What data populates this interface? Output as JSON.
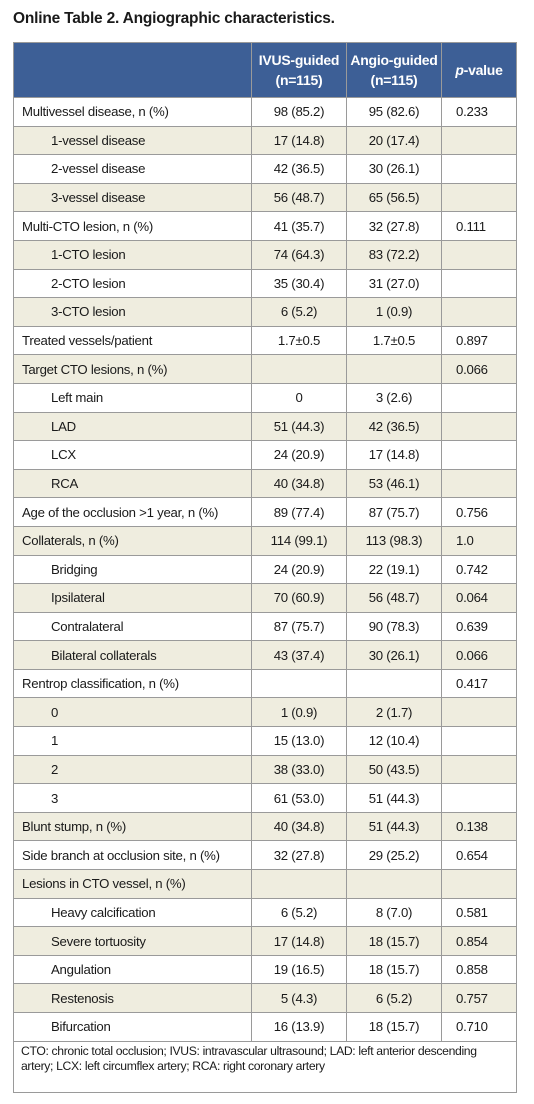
{
  "title": "Online Table 2. Angiographic characteristics.",
  "table": {
    "headers": {
      "label": "",
      "ivus": "IVUS-guided\n(n=115)",
      "ivus_l1": "IVUS-guided",
      "ivus_l2": "(n=115)",
      "angio_l1": "Angio-guided",
      "angio_l2": "(n=115)",
      "p_italic": "p",
      "p_rest": "-value"
    },
    "rows": [
      {
        "label": "Multivessel disease, n (%)",
        "ivus": "98 (85.2)",
        "angio": "95 (82.6)",
        "p": "0.233"
      },
      {
        "label": "1-vessel disease",
        "ivus": "17 (14.8)",
        "angio": "20 (17.4)",
        "p": ""
      },
      {
        "label": "2-vessel disease",
        "ivus": "42 (36.5)",
        "angio": "30 (26.1)",
        "p": ""
      },
      {
        "label": "3-vessel disease",
        "ivus": "56 (48.7)",
        "angio": "65 (56.5)",
        "p": ""
      },
      {
        "label": "Multi-CTO lesion, n (%)",
        "ivus": "41 (35.7)",
        "angio": "32 (27.8)",
        "p": "0.111"
      },
      {
        "label": "1-CTO lesion",
        "ivus": "74 (64.3)",
        "angio": "83 (72.2)",
        "p": ""
      },
      {
        "label": "2-CTO lesion",
        "ivus": "35 (30.4)",
        "angio": "31 (27.0)",
        "p": ""
      },
      {
        "label": "3-CTO lesion",
        "ivus": "6 (5.2)",
        "angio": "1 (0.9)",
        "p": ""
      },
      {
        "label": "Treated vessels/patient",
        "ivus": "1.7±0.5",
        "angio": "1.7±0.5",
        "p": "0.897"
      },
      {
        "label": "Target CTO lesions, n (%)",
        "ivus": "",
        "angio": "",
        "p": "0.066"
      },
      {
        "label": "Left main",
        "ivus": "0",
        "angio": "3 (2.6)",
        "p": ""
      },
      {
        "label": "LAD",
        "ivus": "51 (44.3)",
        "angio": "42 (36.5)",
        "p": ""
      },
      {
        "label": "LCX",
        "ivus": "24 (20.9)",
        "angio": "17 (14.8)",
        "p": ""
      },
      {
        "label": "RCA",
        "ivus": "40 (34.8)",
        "angio": "53 (46.1)",
        "p": ""
      },
      {
        "label": "Age of the occlusion >1 year, n (%)",
        "ivus": "89 (77.4)",
        "angio": "87 (75.7)",
        "p": "0.756"
      },
      {
        "label": "Collaterals, n (%)",
        "ivus": "114 (99.1)",
        "angio": "113 (98.3)",
        "p": "1.0"
      },
      {
        "label": "Bridging",
        "ivus": "24 (20.9)",
        "angio": "22 (19.1)",
        "p": "0.742"
      },
      {
        "label": "Ipsilateral",
        "ivus": "70 (60.9)",
        "angio": "56 (48.7)",
        "p": "0.064"
      },
      {
        "label": "Contralateral",
        "ivus": "87 (75.7)",
        "angio": "90 (78.3)",
        "p": "0.639"
      },
      {
        "label": "Bilateral collaterals",
        "ivus": "43 (37.4)",
        "angio": "30 (26.1)",
        "p": "0.066"
      },
      {
        "label": "Rentrop classification, n (%)",
        "ivus": "",
        "angio": "",
        "p": "0.417"
      },
      {
        "label": "0",
        "ivus": "1 (0.9)",
        "angio": "2 (1.7)",
        "p": ""
      },
      {
        "label": "1",
        "ivus": "15 (13.0)",
        "angio": "12 (10.4)",
        "p": ""
      },
      {
        "label": "2",
        "ivus": "38 (33.0)",
        "angio": "50 (43.5)",
        "p": ""
      },
      {
        "label": "3",
        "ivus": "61 (53.0)",
        "angio": "51 (44.3)",
        "p": ""
      },
      {
        "label": "Blunt stump, n (%)",
        "ivus": "40 (34.8)",
        "angio": "51 (44.3)",
        "p": "0.138"
      },
      {
        "label": "Side branch at occlusion site, n (%)",
        "ivus": "32 (27.8)",
        "angio": "29 (25.2)",
        "p": "0.654"
      },
      {
        "label": "Lesions in CTO vessel, n (%)",
        "ivus": "",
        "angio": "",
        "p": ""
      },
      {
        "label": "Heavy calcification",
        "ivus": "6 (5.2)",
        "angio": "8 (7.0)",
        "p": "0.581"
      },
      {
        "label": "Severe tortuosity",
        "ivus": "17 (14.8)",
        "angio": "18 (15.7)",
        "p": "0.854"
      },
      {
        "label": "Angulation",
        "ivus": "19 (16.5)",
        "angio": "18 (15.7)",
        "p": "0.858"
      },
      {
        "label": "Restenosis",
        "ivus": "5 (4.3)",
        "angio": "6 (5.2)",
        "p": "0.757"
      },
      {
        "label": "Bifurcation",
        "ivus": "16 (13.9)",
        "angio": "18 (15.7)",
        "p": "0.710"
      }
    ],
    "footnote": "CTO: chronic total occlusion; IVUS: intravascular ultrasound; LAD: left anterior descending artery; LCX: left circumflex artery; RCA: right coronary artery"
  }
}
